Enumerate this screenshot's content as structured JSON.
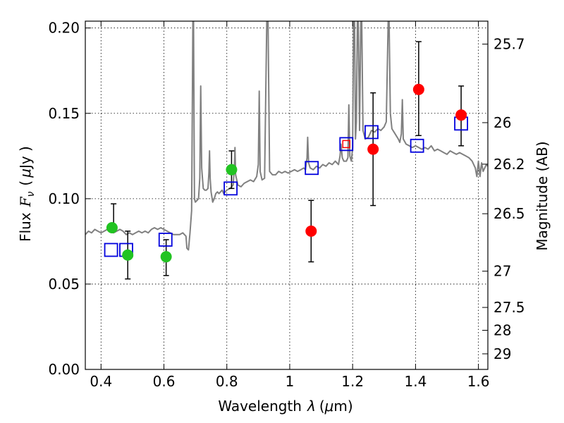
{
  "chart_data": {
    "type": "scatter",
    "xlabel_prefix": "Wavelength",
    "xlabel_symbol": "λ",
    "xlabel_unit_open": "(",
    "xlabel_unit_mu": "μ",
    "xlabel_unit_rest": "m)",
    "ylabel_prefix": "Flux",
    "ylabel_symbol": "F",
    "ylabel_subscript": "ν",
    "ylabel_unit_open": "(",
    "ylabel_unit_mu": "μ",
    "ylabel_unit_rest": "Jy )",
    "y2label": "Magnitude (AB)",
    "xlim": [
      0.35,
      1.63
    ],
    "ylim": [
      0.0,
      0.204
    ],
    "grid": true,
    "x_ticks": [
      {
        "value": 0.4,
        "label": "0.4"
      },
      {
        "value": 0.6,
        "label": "0.6"
      },
      {
        "value": 0.8,
        "label": "0.8"
      },
      {
        "value": 1.0,
        "label": "1"
      },
      {
        "value": 1.2,
        "label": "1.2"
      },
      {
        "value": 1.4,
        "label": "1.4"
      },
      {
        "value": 1.6,
        "label": "1.6"
      }
    ],
    "y_ticks": [
      {
        "value": 0.0,
        "label": "0.00"
      },
      {
        "value": 0.05,
        "label": "0.05"
      },
      {
        "value": 0.1,
        "label": "0.10"
      },
      {
        "value": 0.15,
        "label": "0.15"
      },
      {
        "value": 0.2,
        "label": "0.20"
      }
    ],
    "y2_ticks": [
      {
        "mag": 25.7,
        "label": "25.7"
      },
      {
        "mag": 26.0,
        "label": "26"
      },
      {
        "mag": 26.2,
        "label": "26.2"
      },
      {
        "mag": 26.5,
        "label": "26.5"
      },
      {
        "mag": 27.0,
        "label": "27"
      },
      {
        "mag": 27.5,
        "label": "27.5"
      },
      {
        "mag": 28.0,
        "label": "28"
      },
      {
        "mag": 29.0,
        "label": "29"
      }
    ],
    "spectrum": {
      "name": "Model spectrum",
      "color": "#808080",
      "points": [
        [
          0.35,
          0.079
        ],
        [
          0.36,
          0.081
        ],
        [
          0.37,
          0.08
        ],
        [
          0.38,
          0.082
        ],
        [
          0.39,
          0.081
        ],
        [
          0.4,
          0.08
        ],
        [
          0.41,
          0.081
        ],
        [
          0.42,
          0.082
        ],
        [
          0.43,
          0.081
        ],
        [
          0.44,
          0.08
        ],
        [
          0.45,
          0.081
        ],
        [
          0.46,
          0.082
        ],
        [
          0.47,
          0.081
        ],
        [
          0.48,
          0.079
        ],
        [
          0.49,
          0.08
        ],
        [
          0.5,
          0.079
        ],
        [
          0.51,
          0.08
        ],
        [
          0.52,
          0.081
        ],
        [
          0.53,
          0.08
        ],
        [
          0.54,
          0.081
        ],
        [
          0.55,
          0.08
        ],
        [
          0.56,
          0.082
        ],
        [
          0.57,
          0.083
        ],
        [
          0.58,
          0.082
        ],
        [
          0.59,
          0.083
        ],
        [
          0.6,
          0.082
        ],
        [
          0.61,
          0.081
        ],
        [
          0.62,
          0.08
        ],
        [
          0.63,
          0.079
        ],
        [
          0.64,
          0.079
        ],
        [
          0.65,
          0.079
        ],
        [
          0.66,
          0.08
        ],
        [
          0.67,
          0.078
        ],
        [
          0.673,
          0.071
        ],
        [
          0.678,
          0.07
        ],
        [
          0.683,
          0.08
        ],
        [
          0.688,
          0.093
        ],
        [
          0.692,
          0.204
        ],
        [
          0.694,
          0.204
        ],
        [
          0.697,
          0.1
        ],
        [
          0.7,
          0.098
        ],
        [
          0.705,
          0.099
        ],
        [
          0.71,
          0.1
        ],
        [
          0.714,
          0.112
        ],
        [
          0.717,
          0.166
        ],
        [
          0.72,
          0.118
        ],
        [
          0.725,
          0.106
        ],
        [
          0.73,
          0.105
        ],
        [
          0.735,
          0.105
        ],
        [
          0.74,
          0.106
        ],
        [
          0.743,
          0.115
        ],
        [
          0.745,
          0.128
        ],
        [
          0.747,
          0.112
        ],
        [
          0.75,
          0.104
        ],
        [
          0.755,
          0.098
        ],
        [
          0.76,
          0.1
        ],
        [
          0.765,
          0.103
        ],
        [
          0.77,
          0.104
        ],
        [
          0.775,
          0.103
        ],
        [
          0.78,
          0.104
        ],
        [
          0.785,
          0.105
        ],
        [
          0.79,
          0.103
        ],
        [
          0.795,
          0.104
        ],
        [
          0.8,
          0.105
        ],
        [
          0.81,
          0.106
        ],
        [
          0.82,
          0.108
        ],
        [
          0.824,
          0.118
        ],
        [
          0.826,
          0.13
        ],
        [
          0.828,
          0.114
        ],
        [
          0.835,
          0.108
        ],
        [
          0.845,
          0.107
        ],
        [
          0.855,
          0.109
        ],
        [
          0.865,
          0.11
        ],
        [
          0.875,
          0.111
        ],
        [
          0.885,
          0.11
        ],
        [
          0.895,
          0.113
        ],
        [
          0.9,
          0.12
        ],
        [
          0.903,
          0.163
        ],
        [
          0.906,
          0.116
        ],
        [
          0.912,
          0.111
        ],
        [
          0.92,
          0.112
        ],
        [
          0.927,
          0.204
        ],
        [
          0.931,
          0.204
        ],
        [
          0.936,
          0.116
        ],
        [
          0.945,
          0.114
        ],
        [
          0.955,
          0.114
        ],
        [
          0.965,
          0.116
        ],
        [
          0.975,
          0.115
        ],
        [
          0.985,
          0.116
        ],
        [
          0.995,
          0.115
        ],
        [
          1.005,
          0.116
        ],
        [
          1.015,
          0.117
        ],
        [
          1.025,
          0.116
        ],
        [
          1.035,
          0.117
        ],
        [
          1.045,
          0.118
        ],
        [
          1.05,
          0.117
        ],
        [
          1.055,
          0.124
        ],
        [
          1.057,
          0.136
        ],
        [
          1.06,
          0.121
        ],
        [
          1.065,
          0.118
        ],
        [
          1.075,
          0.117
        ],
        [
          1.085,
          0.119
        ],
        [
          1.095,
          0.118
        ],
        [
          1.105,
          0.12
        ],
        [
          1.115,
          0.119
        ],
        [
          1.125,
          0.121
        ],
        [
          1.135,
          0.12
        ],
        [
          1.145,
          0.122
        ],
        [
          1.155,
          0.12
        ],
        [
          1.16,
          0.125
        ],
        [
          1.163,
          0.132
        ],
        [
          1.167,
          0.124
        ],
        [
          1.172,
          0.122
        ],
        [
          1.18,
          0.122
        ],
        [
          1.185,
          0.124
        ],
        [
          1.188,
          0.155
        ],
        [
          1.191,
          0.125
        ],
        [
          1.196,
          0.122
        ],
        [
          1.2,
          0.13
        ],
        [
          1.203,
          0.204
        ],
        [
          1.206,
          0.204
        ],
        [
          1.209,
          0.135
        ],
        [
          1.212,
          0.145
        ],
        [
          1.215,
          0.204
        ],
        [
          1.218,
          0.204
        ],
        [
          1.222,
          0.14
        ],
        [
          1.226,
          0.204
        ],
        [
          1.229,
          0.204
        ],
        [
          1.233,
          0.14
        ],
        [
          1.24,
          0.135
        ],
        [
          1.25,
          0.136
        ],
        [
          1.26,
          0.14
        ],
        [
          1.27,
          0.139
        ],
        [
          1.28,
          0.141
        ],
        [
          1.29,
          0.14
        ],
        [
          1.3,
          0.142
        ],
        [
          1.307,
          0.145
        ],
        [
          1.313,
          0.204
        ],
        [
          1.316,
          0.204
        ],
        [
          1.32,
          0.15
        ],
        [
          1.325,
          0.141
        ],
        [
          1.335,
          0.138
        ],
        [
          1.345,
          0.135
        ],
        [
          1.35,
          0.133
        ],
        [
          1.355,
          0.138
        ],
        [
          1.358,
          0.158
        ],
        [
          1.361,
          0.135
        ],
        [
          1.37,
          0.132
        ],
        [
          1.38,
          0.131
        ],
        [
          1.39,
          0.13
        ],
        [
          1.4,
          0.131
        ],
        [
          1.41,
          0.13
        ],
        [
          1.42,
          0.129
        ],
        [
          1.43,
          0.13
        ],
        [
          1.44,
          0.129
        ],
        [
          1.45,
          0.131
        ],
        [
          1.46,
          0.128
        ],
        [
          1.47,
          0.129
        ],
        [
          1.48,
          0.128
        ],
        [
          1.49,
          0.127
        ],
        [
          1.5,
          0.126
        ],
        [
          1.51,
          0.128
        ],
        [
          1.52,
          0.127
        ],
        [
          1.53,
          0.126
        ],
        [
          1.54,
          0.127
        ],
        [
          1.55,
          0.126
        ],
        [
          1.56,
          0.125
        ],
        [
          1.57,
          0.124
        ],
        [
          1.58,
          0.122
        ],
        [
          1.59,
          0.118
        ],
        [
          1.595,
          0.113
        ],
        [
          1.6,
          0.122
        ],
        [
          1.605,
          0.113
        ],
        [
          1.61,
          0.121
        ],
        [
          1.615,
          0.116
        ],
        [
          1.62,
          0.118
        ],
        [
          1.625,
          0.12
        ],
        [
          1.63,
          0.119
        ]
      ]
    },
    "series": [
      {
        "name": "green observations",
        "marker": "circle",
        "color": "#22c322",
        "points": [
          {
            "x": 0.435,
            "y": 0.083
          },
          {
            "x": 0.485,
            "y": 0.067,
            "ylow": 0.053,
            "yhigh": 0.081
          },
          {
            "x": 0.607,
            "y": 0.066,
            "ylow": 0.055,
            "yhigh": 0.076
          },
          {
            "x": 0.815,
            "y": 0.117,
            "ylow": 0.106,
            "yhigh": 0.128
          }
        ]
      },
      {
        "name": "red observations",
        "marker": "circle",
        "color": "#ff0000",
        "points": [
          {
            "x": 1.068,
            "y": 0.081,
            "ylow": 0.063,
            "yhigh": 0.099
          },
          {
            "x": 1.265,
            "y": 0.129,
            "ylow": 0.096,
            "yhigh": 0.162
          },
          {
            "x": 1.41,
            "y": 0.164,
            "ylow": 0.137,
            "yhigh": 0.192
          },
          {
            "x": 1.545,
            "y": 0.149,
            "ylow": 0.131,
            "yhigh": 0.166
          }
        ]
      },
      {
        "name": "model synthetic photometry",
        "marker": "open-square",
        "color": "#0000dd",
        "points": [
          {
            "x": 0.432,
            "y": 0.07
          },
          {
            "x": 0.48,
            "y": 0.07
          },
          {
            "x": 0.605,
            "y": 0.076
          },
          {
            "x": 0.812,
            "y": 0.106
          },
          {
            "x": 1.07,
            "y": 0.118
          },
          {
            "x": 1.18,
            "y": 0.132
          },
          {
            "x": 1.26,
            "y": 0.139
          },
          {
            "x": 1.405,
            "y": 0.131
          },
          {
            "x": 1.545,
            "y": 0.144
          }
        ]
      }
    ],
    "extra_errorbars": [
      {
        "x": 0.44,
        "ylow": 0.083,
        "yhigh": 0.097
      }
    ],
    "small_red_square": {
      "x": 1.18,
      "y": 0.132,
      "color": "#ff0000"
    }
  }
}
